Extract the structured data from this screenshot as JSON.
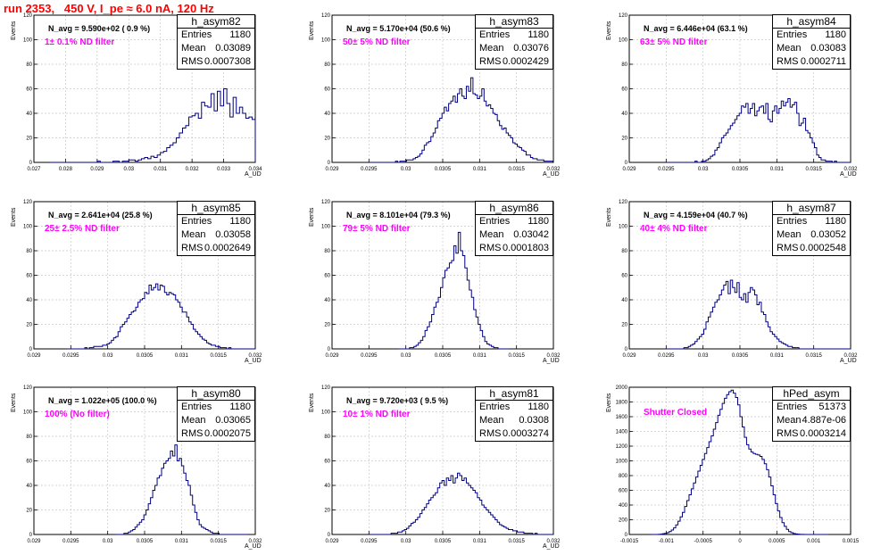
{
  "page": {
    "title": "run 2353,   450 V, I_pe ≈ 6.0 nA, 120 Hz"
  },
  "colors": {
    "title": "#ff0000",
    "annotation": "#ff00ff",
    "histogram": "#000080",
    "grid": "#c8c8c8"
  },
  "chart_data": [
    {
      "type": "bar",
      "title": "h_asym82",
      "xlabel": "A_UD",
      "ylabel": "Events",
      "xlim": [
        0.027,
        0.034
      ],
      "ylim": [
        0,
        120
      ],
      "xticks": [
        0.027,
        0.028,
        0.029,
        0.03,
        0.031,
        0.032,
        0.033,
        0.034
      ],
      "xtick_labels": [
        "0.027",
        "0.028",
        "0.029",
        "0.03",
        "0.031",
        "0.032",
        "0.033",
        "0.034"
      ],
      "yticks": [
        0,
        20,
        40,
        60,
        80,
        100,
        120
      ],
      "stats": {
        "Entries": "1180",
        "Mean": "0.03089",
        "RMS": "0.0007308"
      },
      "n_avg": "N_avg = 9.590e+02 ( 0.9 %)",
      "filter": "1± 0.1% ND filter",
      "x_start": 0.0275,
      "bin_width": 0.0001,
      "values": [
        0,
        0,
        0,
        0,
        0,
        0,
        0,
        0,
        0,
        0,
        0,
        0,
        0,
        0,
        0,
        1,
        0,
        0,
        0,
        0,
        1,
        1,
        0,
        1,
        1,
        2,
        2,
        1,
        2,
        3,
        4,
        3,
        5,
        4,
        6,
        8,
        9,
        12,
        14,
        16,
        20,
        24,
        28,
        30,
        37,
        38,
        40,
        36,
        49,
        46,
        45,
        56,
        42,
        58,
        46,
        60,
        48,
        37,
        53,
        40,
        45,
        40,
        36,
        37,
        35,
        28,
        30,
        24,
        32,
        21,
        19,
        22,
        20,
        12,
        11,
        13,
        10,
        6,
        5,
        4,
        5,
        4,
        3,
        3,
        1,
        2,
        2,
        1,
        2,
        1,
        2,
        1,
        1,
        0,
        1,
        1,
        0,
        0,
        0,
        0,
        1,
        0,
        0,
        0,
        0,
        0,
        0,
        0,
        0,
        0,
        0,
        0,
        0,
        0,
        0,
        0,
        0,
        0,
        0,
        0
      ]
    },
    {
      "type": "bar",
      "title": "h_asym83",
      "xlabel": "A_UD",
      "ylabel": "Events",
      "xlim": [
        0.029,
        0.032
      ],
      "ylim": [
        0,
        120
      ],
      "xticks": [
        0.029,
        0.0295,
        0.03,
        0.0305,
        0.031,
        0.0315,
        0.032
      ],
      "xtick_labels": [
        "0.029",
        "0.0295",
        "0.03",
        "0.0305",
        "0.031",
        "0.0315",
        "0.032"
      ],
      "yticks": [
        0,
        20,
        40,
        60,
        80,
        100,
        120
      ],
      "stats": {
        "Entries": "1180",
        "Mean": "0.03076",
        "RMS": "0.0002429"
      },
      "n_avg": "N_avg = 5.170e+04 (50.6 %)",
      "filter": "50± 5% ND filter",
      "x_start": 0.0295,
      "bin_width": 3e-05,
      "values": [
        0,
        0,
        0,
        0,
        0,
        0,
        0,
        0,
        0,
        0,
        0,
        0,
        1,
        0,
        1,
        1,
        1,
        2,
        2,
        2,
        3,
        4,
        5,
        7,
        10,
        14,
        16,
        17,
        21,
        24,
        28,
        34,
        36,
        40,
        45,
        42,
        48,
        50,
        54,
        49,
        56,
        60,
        54,
        52,
        62,
        58,
        69,
        56,
        55,
        52,
        54,
        60,
        50,
        46,
        47,
        44,
        40,
        39,
        34,
        30,
        27,
        28,
        24,
        22,
        20,
        16,
        15,
        13,
        12,
        10,
        9,
        6,
        6,
        4,
        3,
        3,
        2,
        2,
        2,
        1,
        1,
        1,
        1,
        0,
        0,
        1,
        0,
        0,
        0,
        0,
        0,
        0,
        0,
        0,
        0,
        0,
        0,
        0,
        0,
        0
      ]
    },
    {
      "type": "bar",
      "title": "h_asym84",
      "xlabel": "A_UD",
      "ylabel": "Events",
      "xlim": [
        0.029,
        0.032
      ],
      "ylim": [
        0,
        120
      ],
      "xticks": [
        0.029,
        0.0295,
        0.03,
        0.0305,
        0.031,
        0.0315,
        0.032
      ],
      "xtick_labels": [
        "0.029",
        "0.0295",
        "0.03",
        "0.0305",
        "0.031",
        "0.0315",
        "0.032"
      ],
      "yticks": [
        0,
        20,
        40,
        60,
        80,
        100,
        120
      ],
      "stats": {
        "Entries": "1180",
        "Mean": "0.03083",
        "RMS": "0.0002711"
      },
      "n_avg": "N_avg = 6.446e+04 (63.1 %)",
      "filter": "63± 5% ND filter",
      "x_start": 0.0295,
      "bin_width": 3e-05,
      "values": [
        0,
        0,
        0,
        0,
        0,
        0,
        0,
        0,
        0,
        0,
        0,
        0,
        0,
        1,
        0,
        0,
        1,
        1,
        2,
        3,
        5,
        6,
        10,
        12,
        16,
        20,
        22,
        24,
        27,
        30,
        32,
        35,
        38,
        40,
        46,
        45,
        48,
        40,
        44,
        48,
        38,
        42,
        45,
        46,
        40,
        48,
        35,
        33,
        42,
        46,
        40,
        44,
        50,
        46,
        49,
        52,
        45,
        47,
        49,
        40,
        30,
        32,
        36,
        26,
        24,
        20,
        16,
        12,
        6,
        4,
        2,
        2,
        1,
        1,
        1,
        0,
        1,
        0,
        0,
        0,
        0,
        0,
        0,
        0,
        0,
        0,
        0,
        0,
        0,
        0,
        0,
        0,
        0,
        0,
        0,
        0,
        0,
        0,
        0,
        0
      ]
    },
    {
      "type": "bar",
      "title": "h_asym85",
      "xlabel": "A_UD",
      "ylabel": "Events",
      "xlim": [
        0.029,
        0.032
      ],
      "ylim": [
        0,
        120
      ],
      "xticks": [
        0.029,
        0.0295,
        0.03,
        0.0305,
        0.031,
        0.0315,
        0.032
      ],
      "xtick_labels": [
        "0.029",
        "0.0295",
        "0.03",
        "0.0305",
        "0.031",
        "0.0315",
        "0.032"
      ],
      "yticks": [
        0,
        20,
        40,
        60,
        80,
        100,
        120
      ],
      "stats": {
        "Entries": "1180",
        "Mean": "0.03058",
        "RMS": "0.0002649"
      },
      "n_avg": "N_avg = 2.641e+04 (25.8 %)",
      "filter": "25± 2.5% ND filter",
      "x_start": 0.02945,
      "bin_width": 3e-05,
      "values": [
        0,
        0,
        0,
        0,
        0,
        0,
        0,
        0,
        1,
        0,
        1,
        1,
        2,
        2,
        2,
        2,
        3,
        3,
        4,
        5,
        7,
        9,
        10,
        14,
        18,
        20,
        22,
        25,
        28,
        30,
        31,
        34,
        38,
        40,
        41,
        46,
        45,
        52,
        48,
        50,
        53,
        48,
        52,
        51,
        46,
        44,
        46,
        45,
        44,
        40,
        38,
        34,
        30,
        30,
        26,
        22,
        20,
        16,
        14,
        12,
        10,
        8,
        7,
        5,
        4,
        3,
        3,
        2,
        2,
        1,
        1,
        1,
        0,
        1,
        0,
        0,
        0,
        0,
        0,
        0,
        0,
        0,
        0,
        0,
        0,
        0,
        0,
        0,
        0,
        0,
        0,
        0,
        0,
        0,
        0,
        0,
        0,
        0,
        0,
        0
      ]
    },
    {
      "type": "bar",
      "title": "h_asym86",
      "xlabel": "A_UD",
      "ylabel": "Events",
      "xlim": [
        0.029,
        0.032
      ],
      "ylim": [
        0,
        120
      ],
      "xticks": [
        0.029,
        0.0295,
        0.03,
        0.0305,
        0.031,
        0.0315,
        0.032
      ],
      "xtick_labels": [
        "0.029",
        "0.0295",
        "0.03",
        "0.0305",
        "0.031",
        "0.0315",
        "0.032"
      ],
      "yticks": [
        0,
        20,
        40,
        60,
        80,
        100,
        120
      ],
      "stats": {
        "Entries": "1180",
        "Mean": "0.03042",
        "RMS": "0.0001803"
      },
      "n_avg": "N_avg = 8.101e+04 (79.3 %)",
      "filter": "79± 5% ND filter",
      "x_start": 0.0299,
      "bin_width": 3e-05,
      "values": [
        0,
        0,
        0,
        0,
        0,
        1,
        1,
        2,
        3,
        5,
        7,
        10,
        15,
        18,
        22,
        28,
        34,
        38,
        42,
        50,
        58,
        64,
        66,
        70,
        72,
        84,
        78,
        95,
        80,
        76,
        66,
        56,
        48,
        42,
        32,
        26,
        20,
        15,
        10,
        6,
        4,
        3,
        2,
        1,
        1,
        0,
        0,
        0,
        0,
        0
      ]
    },
    {
      "type": "bar",
      "title": "h_asym87",
      "xlabel": "A_UD",
      "ylabel": "Events",
      "xlim": [
        0.029,
        0.032
      ],
      "ylim": [
        0,
        120
      ],
      "xticks": [
        0.029,
        0.0295,
        0.03,
        0.0305,
        0.031,
        0.0315,
        0.032
      ],
      "xtick_labels": [
        "0.029",
        "0.0295",
        "0.03",
        "0.0305",
        "0.031",
        "0.0315",
        "0.032"
      ],
      "yticks": [
        0,
        20,
        40,
        60,
        80,
        100,
        120
      ],
      "stats": {
        "Entries": "1180",
        "Mean": "0.03052",
        "RMS": "0.0002548"
      },
      "n_avg": "N_avg = 4.159e+04 (40.7 %)",
      "filter": "40± 4% ND filter",
      "x_start": 0.0295,
      "bin_width": 3e-05,
      "values": [
        0,
        0,
        0,
        0,
        0,
        0,
        0,
        0,
        1,
        1,
        2,
        3,
        4,
        6,
        8,
        10,
        12,
        16,
        22,
        26,
        30,
        34,
        38,
        40,
        44,
        48,
        52,
        55,
        45,
        56,
        50,
        46,
        54,
        42,
        40,
        45,
        38,
        46,
        50,
        48,
        44,
        36,
        38,
        30,
        28,
        22,
        18,
        14,
        12,
        10,
        8,
        6,
        5,
        4,
        3,
        2,
        2,
        1,
        1,
        1,
        0,
        0,
        0,
        0,
        0,
        0,
        0,
        0,
        0,
        0,
        0,
        0,
        0,
        0,
        0,
        0,
        0,
        0,
        0,
        0,
        0,
        0,
        0,
        0,
        0,
        0,
        0,
        0,
        0,
        0,
        0,
        0,
        0,
        0,
        0,
        0,
        0,
        0,
        0,
        0
      ]
    },
    {
      "type": "bar",
      "title": "h_asym80",
      "xlabel": "A_UD",
      "ylabel": "Events",
      "xlim": [
        0.029,
        0.032
      ],
      "ylim": [
        0,
        120
      ],
      "xticks": [
        0.029,
        0.0295,
        0.03,
        0.0305,
        0.031,
        0.0315,
        0.032
      ],
      "xtick_labels": [
        "0.029",
        "0.0295",
        "0.03",
        "0.0305",
        "0.031",
        "0.0315",
        "0.032"
      ],
      "yticks": [
        0,
        20,
        40,
        60,
        80,
        100,
        120
      ],
      "stats": {
        "Entries": "1180",
        "Mean": "0.03065",
        "RMS": "0.0002075"
      },
      "n_avg": "N_avg = 1.022e+05 (100.0 %)",
      "filter": "100% (No filter)",
      "x_start": 0.0301,
      "bin_width": 3e-05,
      "values": [
        0,
        0,
        0,
        0,
        1,
        1,
        2,
        3,
        4,
        6,
        8,
        10,
        12,
        16,
        20,
        25,
        30,
        36,
        40,
        46,
        48,
        54,
        58,
        60,
        62,
        68,
        64,
        73,
        60,
        62,
        56,
        50,
        44,
        40,
        32,
        24,
        18,
        12,
        8,
        6,
        5,
        4,
        3,
        2,
        1,
        1,
        1,
        0,
        0,
        0,
        0,
        0,
        0,
        0,
        0,
        0,
        0,
        0,
        0,
        0
      ]
    },
    {
      "type": "bar",
      "title": "h_asym81",
      "xlabel": "A_UD",
      "ylabel": "Events",
      "xlim": [
        0.029,
        0.032
      ],
      "ylim": [
        0,
        120
      ],
      "xticks": [
        0.029,
        0.0295,
        0.03,
        0.0305,
        0.031,
        0.0315,
        0.032
      ],
      "xtick_labels": [
        "0.029",
        "0.0295",
        "0.03",
        "0.0305",
        "0.031",
        "0.0315",
        "0.032"
      ],
      "yticks": [
        0,
        20,
        40,
        60,
        80,
        100,
        120
      ],
      "stats": {
        "Entries": "1180",
        "Mean": "0.0308",
        "RMS": "0.0003274"
      },
      "n_avg": "N_avg = 9.720e+03 ( 9.5 %)",
      "filter": "10± 1% ND filter",
      "x_start": 0.0295,
      "bin_width": 3e-05,
      "values": [
        0,
        0,
        0,
        0,
        0,
        0,
        0,
        0,
        0,
        0,
        1,
        1,
        1,
        2,
        2,
        3,
        4,
        5,
        7,
        9,
        10,
        12,
        14,
        17,
        20,
        22,
        25,
        28,
        30,
        32,
        34,
        38,
        42,
        44,
        40,
        46,
        44,
        48,
        42,
        46,
        50,
        48,
        44,
        46,
        42,
        40,
        38,
        36,
        34,
        30,
        28,
        24,
        22,
        20,
        18,
        16,
        14,
        12,
        10,
        8,
        7,
        6,
        5,
        4,
        4,
        3,
        3,
        2,
        2,
        2,
        1,
        1,
        1,
        1,
        0,
        1,
        0,
        0,
        0,
        0,
        0,
        0,
        0,
        0,
        0,
        0,
        0,
        0,
        0,
        0,
        0,
        0,
        0,
        0,
        0,
        0,
        0,
        0,
        0,
        0
      ]
    },
    {
      "type": "bar",
      "title": "hPed_asym",
      "xlabel": "",
      "ylabel": "Events",
      "xlim": [
        -0.0015,
        0.0015
      ],
      "ylim": [
        0,
        2000
      ],
      "xticks": [
        -0.0015,
        -0.001,
        -0.0005,
        0,
        0.0005,
        0.001,
        0.0015
      ],
      "xtick_labels": [
        "-0.0015",
        "-0.001",
        "-0.0005",
        "0",
        "0.0005",
        "0.001",
        "0.0015"
      ],
      "yticks": [
        0,
        200,
        400,
        600,
        800,
        1000,
        1200,
        1400,
        1600,
        1800,
        2000
      ],
      "stats": {
        "Entries": "51373",
        "Mean": "4.887e-06",
        "RMS": "0.0003214"
      },
      "n_avg": "",
      "filter": "Shutter Closed",
      "x_start": -0.0012,
      "bin_width": 3e-05,
      "values": [
        0,
        0,
        0,
        2,
        5,
        10,
        15,
        25,
        40,
        60,
        90,
        130,
        180,
        240,
        300,
        380,
        460,
        540,
        620,
        700,
        780,
        860,
        940,
        1020,
        1100,
        1180,
        1260,
        1340,
        1430,
        1520,
        1620,
        1700,
        1780,
        1850,
        1900,
        1940,
        1960,
        1920,
        1860,
        1760,
        1600,
        1460,
        1320,
        1220,
        1160,
        1120,
        1100,
        1090,
        1080,
        1060,
        1020,
        960,
        880,
        780,
        660,
        540,
        420,
        320,
        230,
        160,
        110,
        70,
        40,
        25,
        14,
        8,
        4,
        2,
        1,
        0,
        0,
        0,
        0,
        0,
        0,
        0,
        0,
        0,
        0,
        0
      ]
    }
  ]
}
